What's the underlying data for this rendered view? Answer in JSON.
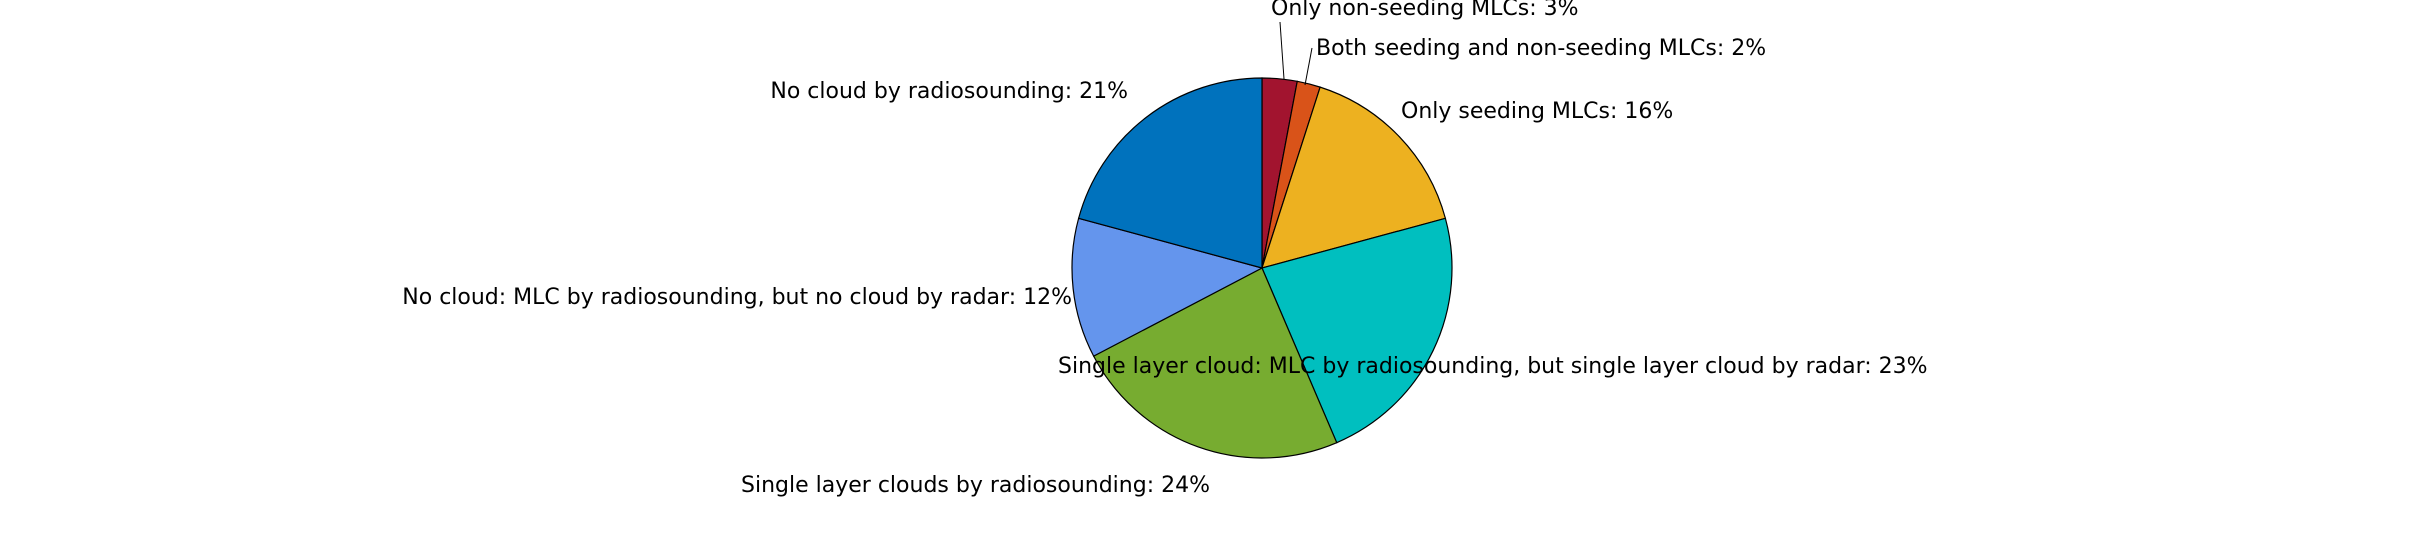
{
  "chart_data": {
    "type": "pie",
    "title": "",
    "start": "top",
    "direction": "clockwise",
    "slices": [
      {
        "label": "Only non-seeding MLCs: 3%",
        "value": 3,
        "color": "#A2142F"
      },
      {
        "label": "Both seeding and non-seeding MLCs: 2%",
        "value": 2,
        "color": "#D95319"
      },
      {
        "label": "Only seeding MLCs: 16%",
        "value": 16,
        "color": "#EDB120"
      },
      {
        "label": "Single layer cloud: MLC by radiosounding, but single layer cloud by radar: 23%",
        "value": 23,
        "color": "#00BFBF"
      },
      {
        "label": "Single layer clouds by radiosounding: 24%",
        "value": 24,
        "color": "#77AC30"
      },
      {
        "label": "No cloud: MLC by radiosounding, but no cloud by radar: 12%",
        "value": 12,
        "color": "#6495ED"
      },
      {
        "label": "No cloud by radiosounding: 21%",
        "value": 21,
        "color": "#0072BD"
      }
    ]
  }
}
